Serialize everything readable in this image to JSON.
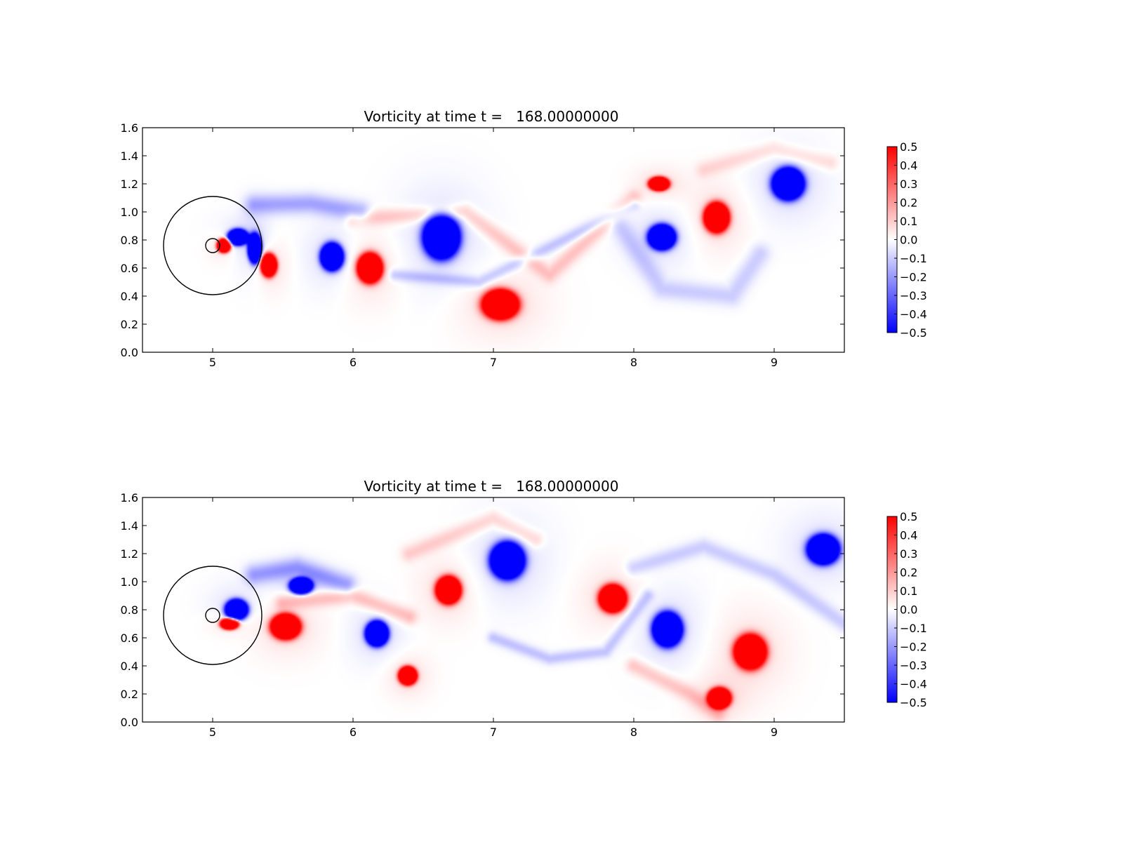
{
  "chart_data": [
    {
      "type": "heatmap",
      "title": "Vorticity at time t =   168.00000000",
      "xlabel": "",
      "ylabel": "",
      "xlim": [
        4.5,
        9.5
      ],
      "ylim": [
        0.0,
        1.6
      ],
      "xticks": [
        "5",
        "6",
        "7",
        "8",
        "9"
      ],
      "yticks": [
        "0.0",
        "0.2",
        "0.4",
        "0.6",
        "0.8",
        "1.0",
        "1.2",
        "1.4",
        "1.6"
      ],
      "grid": false,
      "colormap": {
        "low": "#0000ff",
        "mid": "#ffffff",
        "high": "#ff0000"
      },
      "colorbar": {
        "range": [
          -0.5,
          0.5
        ],
        "ticks": [
          "0.5",
          "0.4",
          "0.3",
          "0.2",
          "0.1",
          "0.0",
          "−0.1",
          "−0.2",
          "−0.3",
          "−0.4",
          "−0.5"
        ]
      },
      "body": {
        "center": [
          5.0,
          0.76
        ],
        "radius": 0.05
      },
      "circle": {
        "center": [
          5.0,
          0.76
        ],
        "radius": 0.35
      },
      "vortices": [
        {
          "x": 5.18,
          "y": 0.82,
          "rx": 0.09,
          "ry": 0.07,
          "sign": -1,
          "strength": 1.0
        },
        {
          "x": 5.08,
          "y": 0.76,
          "rx": 0.06,
          "ry": 0.06,
          "sign": 1,
          "strength": 1.0
        },
        {
          "x": 5.3,
          "y": 0.74,
          "rx": 0.06,
          "ry": 0.13,
          "sign": -1,
          "strength": 1.0
        },
        {
          "x": 5.4,
          "y": 0.62,
          "rx": 0.07,
          "ry": 0.1,
          "sign": 1,
          "strength": 1.0
        },
        {
          "x": 5.85,
          "y": 0.68,
          "rx": 0.1,
          "ry": 0.12,
          "sign": -1,
          "strength": 1.0
        },
        {
          "x": 6.12,
          "y": 0.6,
          "rx": 0.11,
          "ry": 0.13,
          "sign": 1,
          "strength": 1.0
        },
        {
          "x": 6.63,
          "y": 0.82,
          "rx": 0.16,
          "ry": 0.19,
          "sign": -1,
          "strength": 1.0
        },
        {
          "x": 7.05,
          "y": 0.34,
          "rx": 0.16,
          "ry": 0.13,
          "sign": 1,
          "strength": 1.0
        },
        {
          "x": 8.18,
          "y": 1.2,
          "rx": 0.09,
          "ry": 0.06,
          "sign": 1,
          "strength": 1.0
        },
        {
          "x": 8.2,
          "y": 0.82,
          "rx": 0.12,
          "ry": 0.11,
          "sign": -1,
          "strength": 1.0
        },
        {
          "x": 8.59,
          "y": 0.96,
          "rx": 0.11,
          "ry": 0.13,
          "sign": 1,
          "strength": 1.0
        },
        {
          "x": 9.1,
          "y": 1.2,
          "rx": 0.14,
          "ry": 0.14,
          "sign": -1,
          "strength": 1.0
        }
      ],
      "filaments": [
        {
          "points": [
            [
              5.3,
              1.05
            ],
            [
              5.7,
              1.06
            ],
            [
              6.05,
              1.0
            ]
          ],
          "width": 0.05,
          "sign": -1,
          "strength": 0.18
        },
        {
          "points": [
            [
              6.0,
              0.95
            ],
            [
              6.8,
              1.0
            ],
            [
              7.4,
              0.55
            ],
            [
              8.0,
              1.1
            ]
          ],
          "width": 0.04,
          "sign": 1,
          "strength": 0.12
        },
        {
          "points": [
            [
              6.3,
              0.55
            ],
            [
              6.9,
              0.5
            ],
            [
              7.6,
              0.85
            ],
            [
              8.0,
              1.05
            ]
          ],
          "width": 0.03,
          "sign": -1,
          "strength": 0.12
        },
        {
          "points": [
            [
              7.9,
              0.9
            ],
            [
              8.2,
              0.45
            ],
            [
              8.7,
              0.4
            ],
            [
              8.9,
              0.7
            ]
          ],
          "width": 0.05,
          "sign": -1,
          "strength": 0.1
        },
        {
          "points": [
            [
              8.5,
              1.3
            ],
            [
              9.0,
              1.45
            ],
            [
              9.4,
              1.35
            ]
          ],
          "width": 0.04,
          "sign": 1,
          "strength": 0.08
        }
      ]
    },
    {
      "type": "heatmap",
      "title": "Vorticity at time t =   168.00000000",
      "xlabel": "",
      "ylabel": "",
      "xlim": [
        4.5,
        9.5
      ],
      "ylim": [
        0.0,
        1.6
      ],
      "xticks": [
        "5",
        "6",
        "7",
        "8",
        "9"
      ],
      "yticks": [
        "0.0",
        "0.2",
        "0.4",
        "0.6",
        "0.8",
        "1.0",
        "1.2",
        "1.4",
        "1.6"
      ],
      "grid": false,
      "colormap": {
        "low": "#0000ff",
        "mid": "#ffffff",
        "high": "#ff0000"
      },
      "colorbar": {
        "range": [
          -0.5,
          0.5
        ],
        "ticks": [
          "0.5",
          "0.4",
          "0.3",
          "0.2",
          "0.1",
          "0.0",
          "−0.1",
          "−0.2",
          "−0.3",
          "−0.4",
          "−0.5"
        ]
      },
      "body": {
        "center": [
          5.0,
          0.76
        ],
        "radius": 0.05
      },
      "circle": {
        "center": [
          5.0,
          0.76
        ],
        "radius": 0.35
      },
      "vortices": [
        {
          "x": 5.17,
          "y": 0.8,
          "rx": 0.1,
          "ry": 0.09,
          "sign": -1,
          "strength": 1.0
        },
        {
          "x": 5.12,
          "y": 0.7,
          "rx": 0.08,
          "ry": 0.05,
          "sign": 1,
          "strength": 1.0
        },
        {
          "x": 5.52,
          "y": 0.68,
          "rx": 0.13,
          "ry": 0.11,
          "sign": 1,
          "strength": 1.0
        },
        {
          "x": 5.63,
          "y": 0.97,
          "rx": 0.1,
          "ry": 0.07,
          "sign": -1,
          "strength": 1.0
        },
        {
          "x": 6.17,
          "y": 0.63,
          "rx": 0.1,
          "ry": 0.11,
          "sign": -1,
          "strength": 1.0
        },
        {
          "x": 6.39,
          "y": 0.33,
          "rx": 0.08,
          "ry": 0.08,
          "sign": 1,
          "strength": 1.0
        },
        {
          "x": 6.68,
          "y": 0.94,
          "rx": 0.11,
          "ry": 0.12,
          "sign": 1,
          "strength": 1.0
        },
        {
          "x": 7.1,
          "y": 1.15,
          "rx": 0.15,
          "ry": 0.16,
          "sign": -1,
          "strength": 1.0
        },
        {
          "x": 7.85,
          "y": 0.88,
          "rx": 0.12,
          "ry": 0.12,
          "sign": 1,
          "strength": 1.0
        },
        {
          "x": 8.24,
          "y": 0.66,
          "rx": 0.13,
          "ry": 0.15,
          "sign": -1,
          "strength": 1.0
        },
        {
          "x": 8.83,
          "y": 0.5,
          "rx": 0.14,
          "ry": 0.15,
          "sign": 1,
          "strength": 1.0
        },
        {
          "x": 8.61,
          "y": 0.17,
          "rx": 0.1,
          "ry": 0.09,
          "sign": 1,
          "strength": 1.0
        },
        {
          "x": 9.35,
          "y": 1.23,
          "rx": 0.14,
          "ry": 0.13,
          "sign": -1,
          "strength": 1.0
        }
      ],
      "filaments": [
        {
          "points": [
            [
              5.3,
              1.05
            ],
            [
              5.6,
              1.1
            ],
            [
              5.95,
              0.98
            ]
          ],
          "width": 0.05,
          "sign": -1,
          "strength": 0.2
        },
        {
          "points": [
            [
              5.5,
              0.85
            ],
            [
              6.0,
              0.9
            ],
            [
              6.4,
              0.75
            ]
          ],
          "width": 0.04,
          "sign": 1,
          "strength": 0.14
        },
        {
          "points": [
            [
              6.4,
              1.2
            ],
            [
              7.0,
              1.45
            ],
            [
              7.3,
              1.3
            ]
          ],
          "width": 0.04,
          "sign": 1,
          "strength": 0.1
        },
        {
          "points": [
            [
              7.0,
              0.6
            ],
            [
              7.4,
              0.45
            ],
            [
              7.8,
              0.5
            ],
            [
              8.1,
              0.9
            ]
          ],
          "width": 0.03,
          "sign": -1,
          "strength": 0.12
        },
        {
          "points": [
            [
              8.0,
              1.1
            ],
            [
              8.5,
              1.25
            ],
            [
              9.0,
              1.05
            ],
            [
              9.5,
              0.7
            ]
          ],
          "width": 0.04,
          "sign": -1,
          "strength": 0.1
        },
        {
          "points": [
            [
              8.0,
              0.4
            ],
            [
              8.4,
              0.2
            ],
            [
              8.6,
              0.06
            ]
          ],
          "width": 0.04,
          "sign": 1,
          "strength": 0.12
        }
      ]
    }
  ]
}
